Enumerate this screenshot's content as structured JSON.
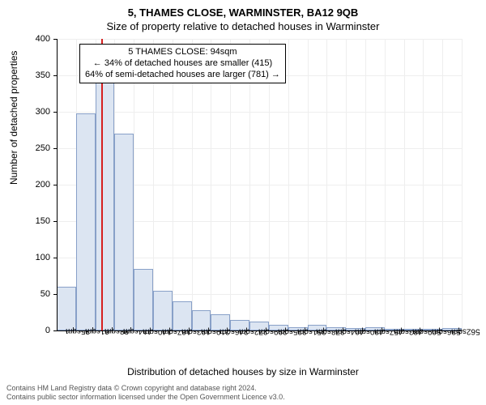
{
  "titles": {
    "main": "5, THAMES CLOSE, WARMINSTER, BA12 9QB",
    "sub": "Size of property relative to detached houses in Warminster"
  },
  "chart": {
    "type": "histogram",
    "ylabel": "Number of detached properties",
    "xlabel": "Distribution of detached houses by size in Warminster",
    "ylim": [
      0,
      400
    ],
    "ytick_step": 50,
    "xlim_count": 21,
    "x_tick_labels": [
      "35sqm",
      "61sqm",
      "88sqm",
      "114sqm",
      "140sqm",
      "167sqm",
      "193sqm",
      "219sqm",
      "246sqm",
      "272sqm",
      "299sqm",
      "325sqm",
      "351sqm",
      "378sqm",
      "404sqm",
      "430sqm",
      "457sqm",
      "483sqm",
      "509sqm",
      "536sqm",
      "562sqm"
    ],
    "values": [
      60,
      298,
      345,
      270,
      85,
      55,
      40,
      28,
      22,
      15,
      12,
      8,
      5,
      8,
      5,
      3,
      4,
      2,
      2,
      2,
      3
    ],
    "bar_fill": "#dce5f2",
    "bar_border": "#88a0c8",
    "background_color": "#ffffff",
    "grid_color": "#eeeeee",
    "axis_color": "#000000",
    "label_fontsize": 12,
    "tick_fontsize": 11,
    "marker": {
      "position_index": 2.3,
      "color": "#d62020"
    },
    "annotation": {
      "line1": "5 THAMES CLOSE: 94sqm",
      "line2": "← 34% of detached houses are smaller (415)",
      "line3": "64% of semi-detached houses are larger (781) →",
      "border_color": "#000000",
      "bg_color": "#ffffff"
    }
  },
  "footer": {
    "line1": "Contains HM Land Registry data © Crown copyright and database right 2024.",
    "line2": "Contains public sector information licensed under the Open Government Licence v3.0."
  }
}
